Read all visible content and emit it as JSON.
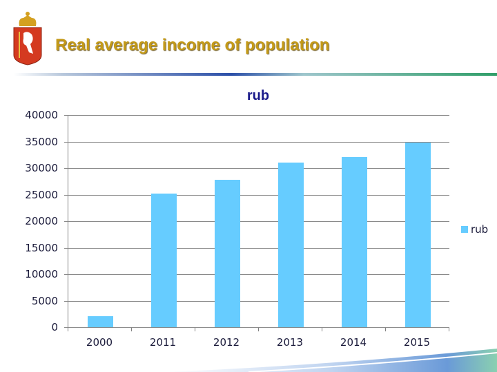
{
  "header": {
    "title": "Real average income of population",
    "emblem": "coat-of-arms-emblem"
  },
  "colors": {
    "title": "#c49a18",
    "bar": "#66ccff",
    "chart_title": "#1a1a8a"
  },
  "chart_data": {
    "type": "bar",
    "title": "rub",
    "categories": [
      "2000",
      "2011",
      "2012",
      "2013",
      "2014",
      "2015"
    ],
    "series": [
      {
        "name": "rub",
        "values": [
          2100,
          25150,
          27800,
          31050,
          32050,
          34750
        ]
      }
    ],
    "xlabel": "",
    "ylabel": "",
    "ylim": [
      0,
      40000
    ],
    "yticks": [
      "0",
      "5000",
      "10000",
      "15000",
      "20000",
      "25000",
      "30000",
      "35000",
      "40000"
    ],
    "grid": true,
    "legend_position": "right"
  }
}
